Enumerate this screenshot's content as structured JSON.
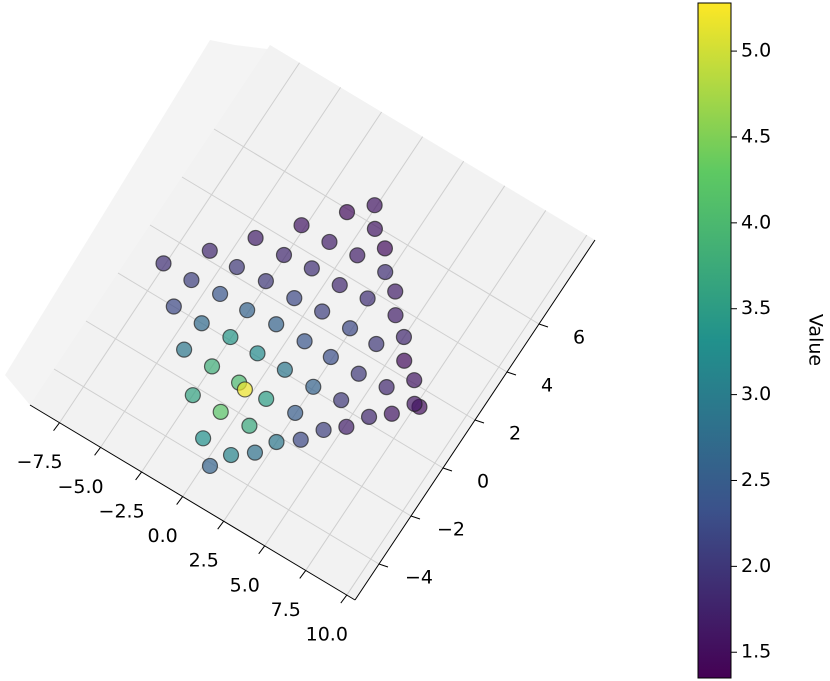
{
  "chart_data": {
    "type": "scatter3d",
    "colormap": "viridis",
    "x": [
      -7.6,
      -5.9,
      -4.2,
      -2.5,
      -0.8,
      0.3,
      -5.95,
      -4.25,
      -2.55,
      -0.85,
      0.85,
      1.87,
      -4.33,
      -2.63,
      -0.93,
      0.77,
      2.47,
      3.49,
      -2.7,
      -1.0,
      0.7,
      2.4,
      4.1,
      5.1,
      -1.1,
      0.6,
      2.3,
      4.0,
      5.7,
      6.7,
      -0.1,
      1.6,
      3.3,
      5.0,
      6.7,
      7.7,
      -5.9,
      -4.2,
      -2.5,
      -0.8,
      0.9,
      -4.3,
      -2.6,
      -0.9,
      0.8,
      2.5,
      -2.6,
      -0.9,
      0.8,
      2.5,
      4.2,
      -1.0,
      0.7,
      2.4,
      4.1,
      5.8,
      0.6,
      2.3,
      4.0,
      5.7,
      7.4,
      -0.4
    ],
    "y": [
      1.1,
      0.0,
      -1.1,
      -2.3,
      -3.4,
      -4.1,
      2.3,
      1.2,
      0.1,
      -1.1,
      -2.2,
      -2.9,
      3.5,
      2.4,
      1.3,
      0.1,
      -1.0,
      -1.7,
      4.7,
      3.6,
      2.5,
      1.3,
      0.2,
      -0.5,
      5.9,
      4.8,
      3.7,
      2.5,
      1.4,
      0.7,
      6.6,
      5.5,
      4.4,
      3.2,
      2.1,
      1.4,
      1.1,
      0.0,
      -1.1,
      -2.3,
      -3.4,
      2.3,
      1.2,
      0.1,
      -1.1,
      -2.2,
      3.5,
      2.4,
      1.3,
      0.1,
      -1.0,
      4.7,
      3.6,
      2.5,
      1.3,
      0.2,
      5.9,
      4.8,
      3.7,
      2.5,
      1.4,
      -1.2
    ],
    "values": [
      1.9,
      2.2,
      2.9,
      3.6,
      3.3,
      2.6,
      1.8,
      2.4,
      3.4,
      4.0,
      3.7,
      2.8,
      1.7,
      2.0,
      2.6,
      2.9,
      2.5,
      2.2,
      1.6,
      1.9,
      2.1,
      2.3,
      2.0,
      1.7,
      1.5,
      1.7,
      1.9,
      2.0,
      1.8,
      1.6,
      1.6,
      1.5,
      1.7,
      1.8,
      1.6,
      1.5,
      2.1,
      2.7,
      3.8,
      4.2,
      3.1,
      2.0,
      2.6,
      3.2,
      3.5,
      2.9,
      1.8,
      2.2,
      2.4,
      2.6,
      2.1,
      1.7,
      1.8,
      2.2,
      2.0,
      1.8,
      1.6,
      1.9,
      1.7,
      1.5,
      1.6,
      5.2
    ],
    "xlim": [
      -9.3,
      10.5
    ],
    "xticks": [
      {
        "value": -7.5,
        "label": "−7.5"
      },
      {
        "value": -5,
        "label": "−5.0"
      },
      {
        "value": -2.5,
        "label": "−2.5"
      },
      {
        "value": 0,
        "label": "0.0"
      },
      {
        "value": 2.5,
        "label": "2.5"
      },
      {
        "value": 5,
        "label": "5.0"
      },
      {
        "value": 7.5,
        "label": "7.5"
      },
      {
        "value": 10,
        "label": "10.0"
      }
    ],
    "ylim": [
      -5.5,
      9.5
    ],
    "yticks": [
      {
        "value": -4,
        "label": "−4"
      },
      {
        "value": -2,
        "label": "−2"
      },
      0,
      2,
      4,
      6
    ],
    "grid": true,
    "colorbar": {
      "label": "Value",
      "clim": [
        1.35,
        5.28
      ],
      "ticks": [
        1.5,
        {
          "value": 2,
          "label": "2.0"
        },
        2.5,
        {
          "value": 3,
          "label": "3.0"
        },
        3.5,
        {
          "value": 4,
          "label": "4.0"
        },
        4.5,
        {
          "value": 5,
          "label": "5.0"
        }
      ]
    }
  }
}
